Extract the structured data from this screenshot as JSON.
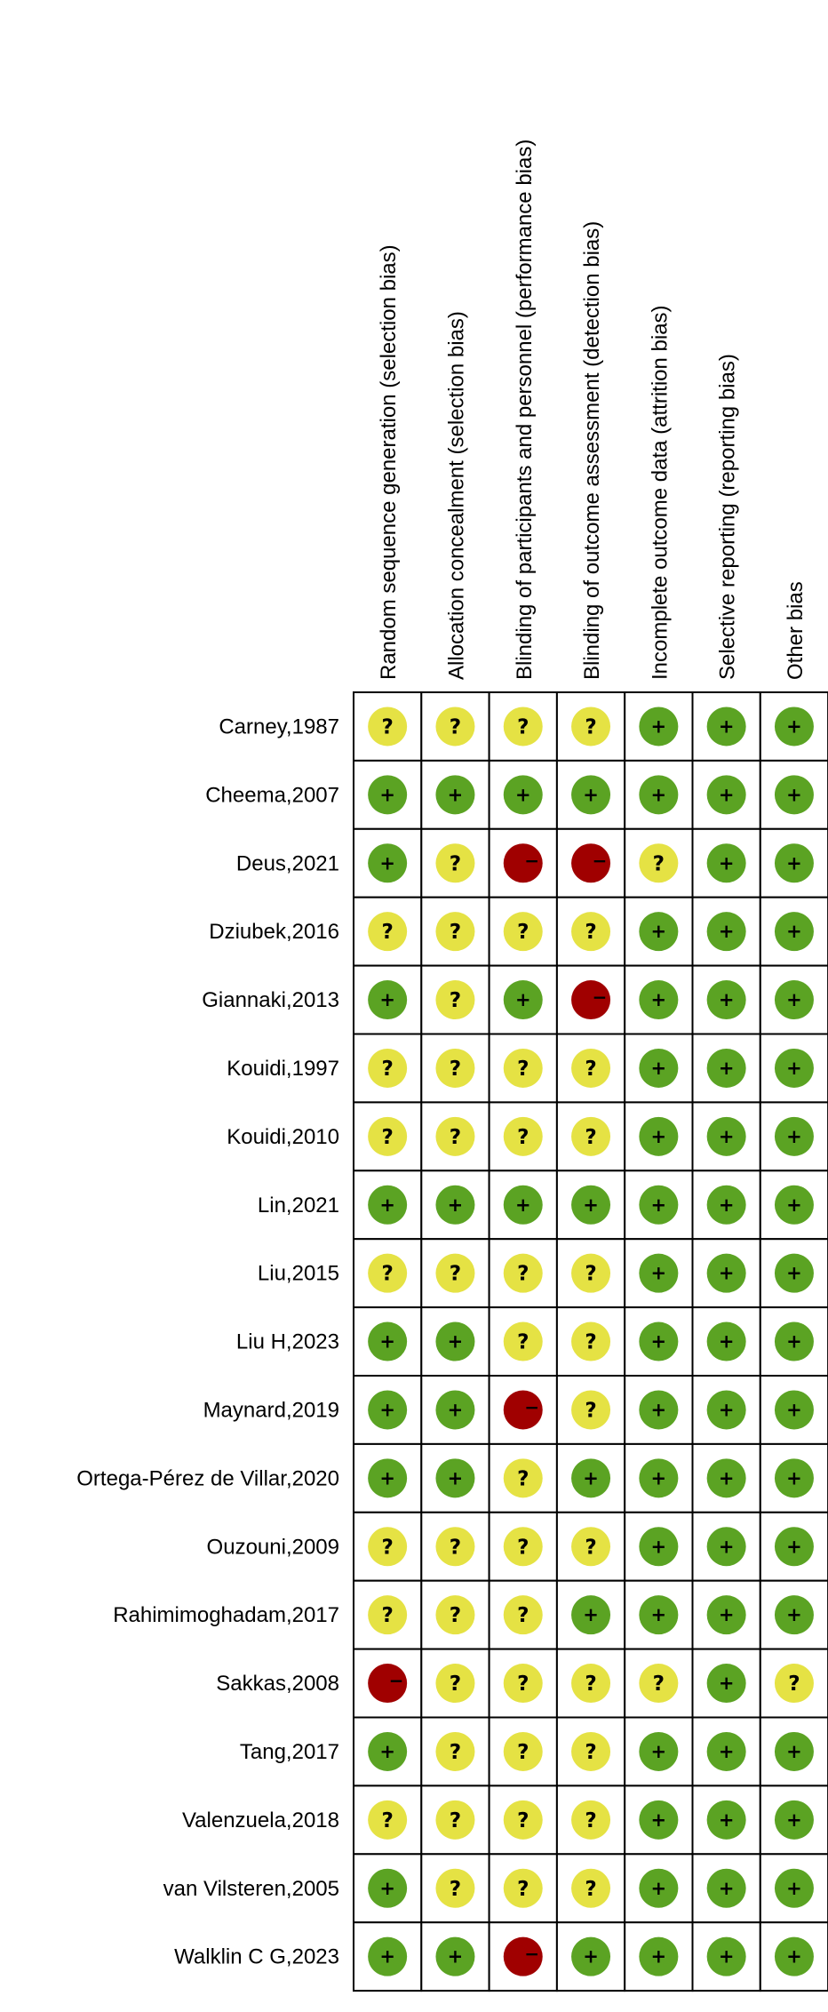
{
  "chart_data": {
    "type": "table",
    "columns": [
      "Random sequence generation (selection bias)",
      "Allocation concealment (selection bias)",
      "Blinding of participants and personnel (performance bias)",
      "Blinding of outcome assessment (detection bias)",
      "Incomplete outcome data (attrition bias)",
      "Selective reporting (reporting bias)",
      "Other bias"
    ],
    "studies": [
      {
        "name": "Carney,1987",
        "ratings": [
          "unclear",
          "unclear",
          "unclear",
          "unclear",
          "low",
          "low",
          "low"
        ]
      },
      {
        "name": "Cheema,2007",
        "ratings": [
          "low",
          "low",
          "low",
          "low",
          "low",
          "low",
          "low"
        ]
      },
      {
        "name": "Deus,2021",
        "ratings": [
          "low",
          "unclear",
          "high",
          "high",
          "unclear",
          "low",
          "low"
        ]
      },
      {
        "name": "Dziubek,2016",
        "ratings": [
          "unclear",
          "unclear",
          "unclear",
          "unclear",
          "low",
          "low",
          "low"
        ]
      },
      {
        "name": "Giannaki,2013",
        "ratings": [
          "low",
          "unclear",
          "low",
          "high",
          "low",
          "low",
          "low"
        ]
      },
      {
        "name": "Kouidi,1997",
        "ratings": [
          "unclear",
          "unclear",
          "unclear",
          "unclear",
          "low",
          "low",
          "low"
        ]
      },
      {
        "name": "Kouidi,2010",
        "ratings": [
          "unclear",
          "unclear",
          "unclear",
          "unclear",
          "low",
          "low",
          "low"
        ]
      },
      {
        "name": "Lin,2021",
        "ratings": [
          "low",
          "low",
          "low",
          "low",
          "low",
          "low",
          "low"
        ]
      },
      {
        "name": "Liu,2015",
        "ratings": [
          "unclear",
          "unclear",
          "unclear",
          "unclear",
          "low",
          "low",
          "low"
        ]
      },
      {
        "name": "Liu H,2023",
        "ratings": [
          "low",
          "low",
          "unclear",
          "unclear",
          "low",
          "low",
          "low"
        ]
      },
      {
        "name": "Maynard,2019",
        "ratings": [
          "low",
          "low",
          "high",
          "unclear",
          "low",
          "low",
          "low"
        ]
      },
      {
        "name": "Ortega-Pérez de Villar,2020",
        "ratings": [
          "low",
          "low",
          "unclear",
          "low",
          "low",
          "low",
          "low"
        ]
      },
      {
        "name": "Ouzouni,2009",
        "ratings": [
          "unclear",
          "unclear",
          "unclear",
          "unclear",
          "low",
          "low",
          "low"
        ]
      },
      {
        "name": "Rahimimoghadam,2017",
        "ratings": [
          "unclear",
          "unclear",
          "unclear",
          "low",
          "low",
          "low",
          "low"
        ]
      },
      {
        "name": "Sakkas,2008",
        "ratings": [
          "high",
          "unclear",
          "unclear",
          "unclear",
          "unclear",
          "low",
          "unclear"
        ]
      },
      {
        "name": "Tang,2017",
        "ratings": [
          "low",
          "unclear",
          "unclear",
          "unclear",
          "low",
          "low",
          "low"
        ]
      },
      {
        "name": "Valenzuela,2018",
        "ratings": [
          "unclear",
          "unclear",
          "unclear",
          "unclear",
          "low",
          "low",
          "low"
        ]
      },
      {
        "name": "van Vilsteren,2005",
        "ratings": [
          "low",
          "unclear",
          "unclear",
          "unclear",
          "low",
          "low",
          "low"
        ]
      },
      {
        "name": "Walklin C G,2023",
        "ratings": [
          "low",
          "low",
          "high",
          "low",
          "low",
          "low",
          "low"
        ]
      }
    ],
    "legend": {
      "low": {
        "symbol": "+",
        "color": "#5ba323"
      },
      "unclear": {
        "symbol": "?",
        "color": "#e5e244"
      },
      "high": {
        "symbol": "−",
        "color": "#a00000"
      }
    }
  }
}
